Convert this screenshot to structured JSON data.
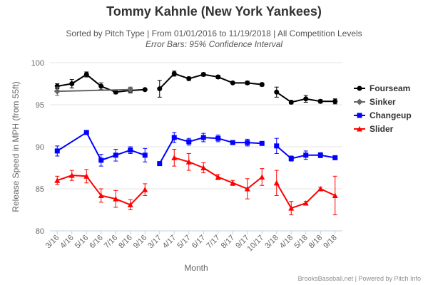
{
  "title": "Tommy Kahnle (New York Yankees)",
  "subtitle": "Sorted by Pitch Type | From 01/01/2016 to 11/19/2018 | All Competition Levels",
  "subtitle2": "Error Bars: 95% Confidence Interval",
  "credits": "BrooksBaseball.net | Powered by Pitch Info",
  "chart_data": {
    "type": "line",
    "title": "Tommy Kahnle (New York Yankees)",
    "xlabel": "Month",
    "ylabel": "Release Speed in MPH (from 55ft)",
    "ylim": [
      80,
      100
    ],
    "yticks": [
      80,
      85,
      90,
      95,
      100
    ],
    "grid": true,
    "legend_position": "right",
    "categories": [
      "3/16",
      "4/16",
      "5/16",
      "6/16",
      "7/16",
      "8/16",
      "9/16",
      "3/17",
      "4/17",
      "5/17",
      "6/17",
      "7/17",
      "8/17",
      "9/17",
      "10/17",
      "3/18",
      "4/18",
      "5/18",
      "8/18",
      "9/18"
    ],
    "category_groups": [
      [
        0,
        6
      ],
      [
        7,
        14
      ],
      [
        15,
        19
      ]
    ],
    "series": [
      {
        "name": "Fourseam",
        "color": "#000000",
        "marker": "circle",
        "values": [
          97.2,
          97.5,
          98.6,
          97.2,
          96.5,
          96.7,
          96.8,
          96.9,
          98.7,
          98.1,
          98.6,
          98.3,
          97.6,
          97.6,
          97.4,
          96.5,
          95.3,
          95.7,
          95.4,
          95.4
        ],
        "error": [
          0.3,
          0.5,
          0.3,
          0.4,
          0.2,
          0.3,
          0.1,
          1.0,
          0.3,
          0.2,
          0.2,
          0.2,
          0.1,
          0.2,
          0.2,
          0.6,
          0.2,
          0.4,
          0.2,
          0.3
        ]
      },
      {
        "name": "Sinker",
        "color": "#666666",
        "marker": "diamond",
        "values": [
          96.6,
          null,
          null,
          null,
          null,
          96.8,
          null,
          null,
          null,
          null,
          null,
          null,
          null,
          null,
          null,
          null,
          null,
          null,
          null,
          null
        ],
        "error": [
          0.5,
          0,
          0,
          0,
          0,
          0.3,
          0,
          0,
          0,
          0,
          0,
          0,
          0,
          0,
          0,
          0,
          0,
          0,
          0,
          0
        ]
      },
      {
        "name": "Changeup",
        "color": "#0000ff",
        "marker": "square",
        "values": [
          89.5,
          null,
          91.7,
          88.4,
          89.0,
          89.6,
          89.0,
          88.0,
          91.1,
          90.6,
          91.1,
          91.0,
          90.5,
          90.5,
          90.4,
          90.1,
          88.6,
          89.0,
          89.0,
          88.7
        ],
        "error": [
          0.6,
          0,
          0,
          0.7,
          0.7,
          0.4,
          0.8,
          0,
          0.6,
          0.4,
          0.5,
          0.4,
          0.2,
          0.4,
          0.2,
          0.9,
          0.3,
          0.5,
          0.3,
          0.2
        ]
      },
      {
        "name": "Slider",
        "color": "#ff0000",
        "marker": "triangle",
        "values": [
          86.0,
          86.6,
          86.5,
          84.2,
          83.8,
          83.1,
          84.9,
          null,
          88.7,
          88.2,
          87.5,
          86.4,
          85.7,
          85.0,
          86.4,
          85.7,
          82.7,
          83.3,
          85.0,
          84.2
        ],
        "error": [
          0.5,
          0.6,
          0.8,
          0.8,
          1.0,
          0.6,
          0.7,
          0,
          1.0,
          1.0,
          0.6,
          0.3,
          0.3,
          1.2,
          1.0,
          1.5,
          0.8,
          0.2,
          0.2,
          2.3
        ]
      }
    ]
  }
}
